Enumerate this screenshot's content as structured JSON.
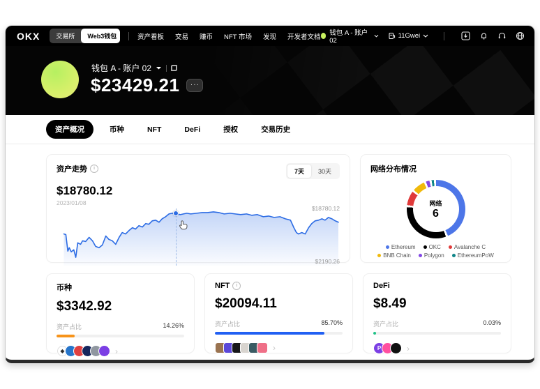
{
  "icons": {
    "more": "···",
    "chevron_right": "›",
    "info": "i"
  },
  "navbar": {
    "logo": "OKX",
    "toggle": {
      "exchange": "交易所",
      "web3": "Web3钱包"
    },
    "menu": [
      "资产看板",
      "交易",
      "赚币",
      "NFT 市场",
      "发现",
      "开发者文档"
    ],
    "account_label": "钱包 A - 账户 02",
    "gas_label": "11Gwei"
  },
  "header": {
    "wallet_name": "钱包 A - 账户 02",
    "balance": "$23429.21"
  },
  "tabs": [
    {
      "label": "资产概况",
      "active": true
    },
    {
      "label": "币种",
      "active": false
    },
    {
      "label": "NFT",
      "active": false
    },
    {
      "label": "DeFi",
      "active": false
    },
    {
      "label": "授权",
      "active": false
    },
    {
      "label": "交易历史",
      "active": false
    }
  ],
  "trend_card": {
    "title": "资产走势",
    "value": "$18780.12",
    "date": "2023/01/08",
    "ranges": [
      {
        "label": "7天",
        "active": true
      },
      {
        "label": "30天",
        "active": false
      }
    ],
    "y_max_label": "$18780.12",
    "y_min_label": "$2190.26"
  },
  "network_card": {
    "title": "网络分布情况",
    "center_label": "网络",
    "center_value": "6"
  },
  "chart_data": [
    {
      "type": "line",
      "title": "资产走势",
      "range_selected": "7天",
      "current_value": 18780.12,
      "current_date": "2023/01/08",
      "y_axis_max": 18780.12,
      "y_axis_min": 2190.26,
      "color": "#2b6be4",
      "cursor": {
        "x": 42,
        "y": 8.4
      },
      "points": [
        [
          2.6,
          44.6
        ],
        [
          3.3,
          45.8
        ],
        [
          4,
          74.7
        ],
        [
          4.5,
          68.7
        ],
        [
          5.2,
          75.9
        ],
        [
          6.1,
          72.3
        ],
        [
          6.8,
          85.5
        ],
        [
          7.5,
          60.2
        ],
        [
          8.5,
          62.7
        ],
        [
          9.2,
          56.6
        ],
        [
          10.3,
          57.8
        ],
        [
          11.5,
          50.6
        ],
        [
          12.7,
          56.6
        ],
        [
          13.8,
          66.3
        ],
        [
          15,
          68.7
        ],
        [
          16.2,
          63.9
        ],
        [
          17.4,
          48.2
        ],
        [
          18.5,
          54.2
        ],
        [
          19.7,
          56.6
        ],
        [
          20.9,
          62.7
        ],
        [
          22.1,
          50.6
        ],
        [
          23.2,
          42.2
        ],
        [
          24.4,
          44.6
        ],
        [
          25.6,
          38.6
        ],
        [
          26.8,
          33.7
        ],
        [
          27.9,
          36.1
        ],
        [
          29.1,
          30.1
        ],
        [
          30.3,
          32.5
        ],
        [
          31.5,
          26.5
        ],
        [
          32.6,
          27.7
        ],
        [
          33.8,
          21.7
        ],
        [
          35,
          20.5
        ],
        [
          36.2,
          24.1
        ],
        [
          37.3,
          18.1
        ],
        [
          38.5,
          14.5
        ],
        [
          39.7,
          9.6
        ],
        [
          40.8,
          8.4
        ],
        [
          42,
          8.4
        ],
        [
          42.5,
          9.6
        ],
        [
          43.7,
          10.8
        ],
        [
          44.8,
          9.6
        ],
        [
          46,
          8.4
        ],
        [
          47.4,
          9.6
        ],
        [
          49.5,
          8.4
        ],
        [
          51.4,
          7.2
        ],
        [
          53.3,
          7.2
        ],
        [
          55.4,
          6
        ],
        [
          57.3,
          7.2
        ],
        [
          59.2,
          9.6
        ],
        [
          61.3,
          8.4
        ],
        [
          63.1,
          9.6
        ],
        [
          65,
          10.8
        ],
        [
          67.1,
          9.6
        ],
        [
          69,
          12
        ],
        [
          70.9,
          10.8
        ],
        [
          73,
          14.5
        ],
        [
          74.9,
          13.3
        ],
        [
          76.8,
          15.7
        ],
        [
          78.9,
          14.5
        ],
        [
          80.8,
          18.1
        ],
        [
          82.6,
          20.5
        ],
        [
          83.8,
          33.7
        ],
        [
          84.7,
          42.2
        ],
        [
          85.4,
          44.6
        ],
        [
          86.6,
          42.2
        ],
        [
          87.8,
          44.6
        ],
        [
          89,
          33.7
        ],
        [
          90.1,
          26.5
        ],
        [
          91.3,
          21.7
        ],
        [
          92.5,
          20.5
        ],
        [
          93.7,
          18.1
        ],
        [
          94.8,
          20.5
        ],
        [
          96,
          15.7
        ],
        [
          97.2,
          18.1
        ],
        [
          98.4,
          21.7
        ],
        [
          99.5,
          24.1
        ]
      ]
    },
    {
      "type": "donut",
      "title": "网络分布情况",
      "center": {
        "label": "网络",
        "value": 6
      },
      "segments": [
        {
          "name": "Ethereum",
          "color": "#4d76e8",
          "value": 44
        },
        {
          "name": "OKC",
          "color": "#000000",
          "value": 32
        },
        {
          "name": "Avalanche C",
          "color": "#e03a3a",
          "value": 8
        },
        {
          "name": "BNB Chain",
          "color": "#f0b90b",
          "value": 7
        },
        {
          "name": "Polygon",
          "color": "#8247e5",
          "value": 2
        },
        {
          "name": "EthereumPoW",
          "color": "#0f8588",
          "value": 1.3
        }
      ]
    }
  ],
  "summary_cards": [
    {
      "title": "币种",
      "has_info": false,
      "value": "$3342.92",
      "ratio_label": "资产占比",
      "ratio_text": "14.26%",
      "percent": 14.26,
      "bar_color": "#f7931a",
      "icon_shape": "circle",
      "icons": [
        {
          "name": "eth-icon",
          "bg": "#ffffff",
          "fg": "#2b2b2b",
          "glyph": "◆",
          "border": "#dcdcdc"
        },
        {
          "name": "usdc-icon",
          "bg": "#2775ca"
        },
        {
          "name": "avax-icon",
          "bg": "#e04040"
        },
        {
          "name": "token-navy-icon",
          "bg": "#15265c"
        },
        {
          "name": "token-gray-icon",
          "bg": "#9097a0"
        },
        {
          "name": "polygon-icon",
          "bg": "#7b3fe4"
        }
      ]
    },
    {
      "title": "NFT",
      "has_info": true,
      "value": "$20094.11",
      "ratio_label": "资产占比",
      "ratio_text": "85.70%",
      "percent": 85.7,
      "bar_color": "#2160f3",
      "icon_shape": "square",
      "icons": [
        {
          "name": "nft-thumb-1",
          "bg": "#9a7350"
        },
        {
          "name": "nft-thumb-2",
          "bg": "#5b48d8"
        },
        {
          "name": "nft-thumb-3",
          "bg": "#17171a"
        },
        {
          "name": "nft-thumb-4",
          "bg": "#d8d4cf"
        },
        {
          "name": "nft-thumb-5",
          "bg": "#3a5b63"
        },
        {
          "name": "nft-thumb-6",
          "bg": "#ef6f87"
        }
      ]
    },
    {
      "title": "DeFi",
      "has_info": false,
      "value": "$8.49",
      "ratio_label": "资产占比",
      "ratio_text": "0.03%",
      "percent": 0.03,
      "bar_color": "#1ec287",
      "icon_shape": "circle",
      "icons": [
        {
          "name": "protocol-p-icon",
          "bg": "#7b3fe4",
          "fg": "#ffffff",
          "glyph": "P"
        },
        {
          "name": "protocol-pink-icon",
          "bg": "#ff4fa0"
        },
        {
          "name": "protocol-dark-icon",
          "bg": "#101010"
        }
      ]
    }
  ]
}
